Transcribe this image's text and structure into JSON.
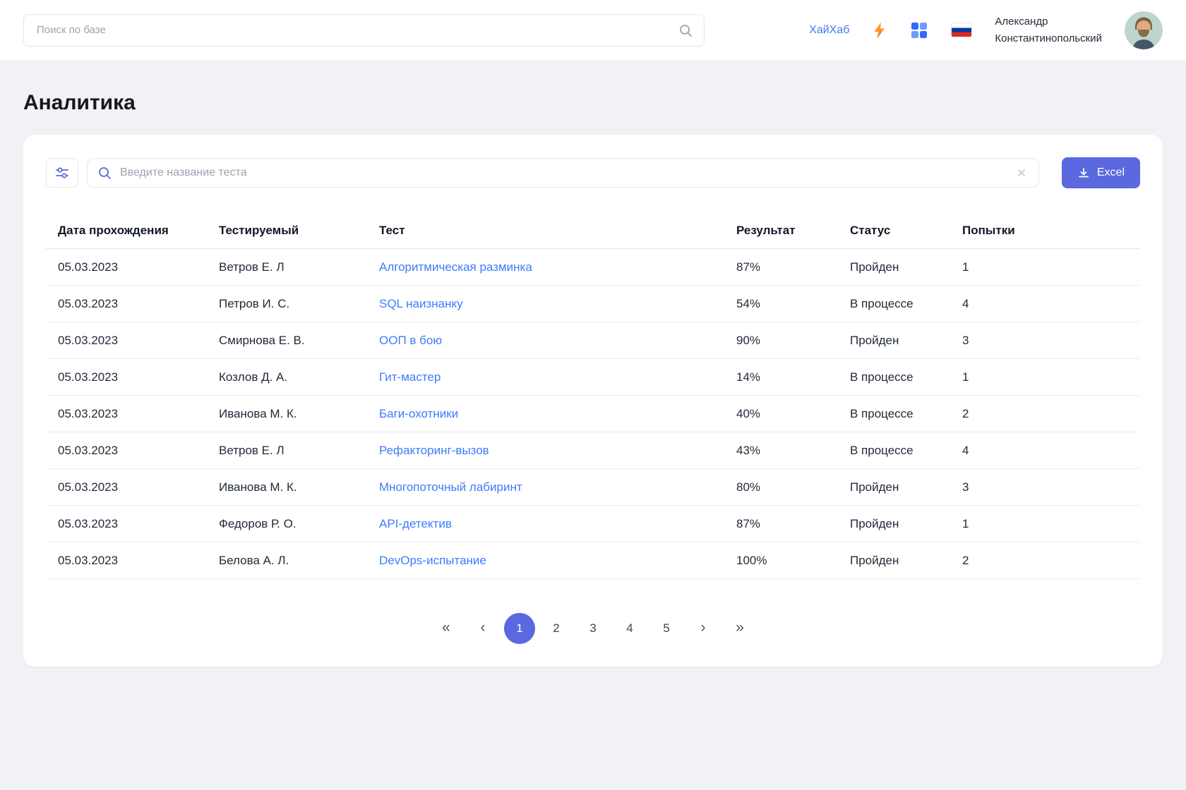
{
  "colors": {
    "accent": "#5b68df",
    "link": "#3e7bfa"
  },
  "topbar": {
    "search_placeholder": "Поиск по базе",
    "brand_link": "ХайХаб",
    "user": {
      "name_line1": "Александр",
      "name_line2": "Константинопольский"
    }
  },
  "page": {
    "title": "Аналитика"
  },
  "toolbar": {
    "search_placeholder": "Введите название теста",
    "excel_label": "Excel"
  },
  "table": {
    "columns": [
      "Дата прохождения",
      "Тестируемый",
      "Тест",
      "Результат",
      "Статус",
      "Попытки"
    ],
    "rows": [
      {
        "date": "05.03.2023",
        "person": "Ветров Е. Л",
        "test": "Алгоритмическая разминка",
        "result": "87%",
        "status": "Пройден",
        "attempts": "1"
      },
      {
        "date": "05.03.2023",
        "person": "Петров И. С.",
        "test": "SQL наизнанку",
        "result": "54%",
        "status": "В процессе",
        "attempts": "4"
      },
      {
        "date": "05.03.2023",
        "person": "Смирнова Е. В.",
        "test": "ООП в бою",
        "result": "90%",
        "status": "Пройден",
        "attempts": "3"
      },
      {
        "date": "05.03.2023",
        "person": "Козлов Д. А.",
        "test": "Гит-мастер",
        "result": "14%",
        "status": "В процессе",
        "attempts": "1"
      },
      {
        "date": "05.03.2023",
        "person": "Иванова М. К.",
        "test": "Баги-охотники",
        "result": "40%",
        "status": "В процессе",
        "attempts": "2"
      },
      {
        "date": "05.03.2023",
        "person": "Ветров Е. Л",
        "test": "Рефакторинг-вызов",
        "result": "43%",
        "status": "В процессе",
        "attempts": "4"
      },
      {
        "date": "05.03.2023",
        "person": "Иванова М. К.",
        "test": "Многопоточный лабиринт",
        "result": "80%",
        "status": "Пройден",
        "attempts": "3"
      },
      {
        "date": "05.03.2023",
        "person": "Федоров Р. О.",
        "test": "API-детектив",
        "result": "87%",
        "status": "Пройден",
        "attempts": "1"
      },
      {
        "date": "05.03.2023",
        "person": "Белова А. Л.",
        "test": "DevOps-испытание",
        "result": "100%",
        "status": "Пройден",
        "attempts": "2"
      }
    ]
  },
  "pagination": {
    "first": "«",
    "prev": "‹",
    "next": "›",
    "last": "»",
    "pages": [
      "1",
      "2",
      "3",
      "4",
      "5"
    ],
    "active": "1"
  }
}
